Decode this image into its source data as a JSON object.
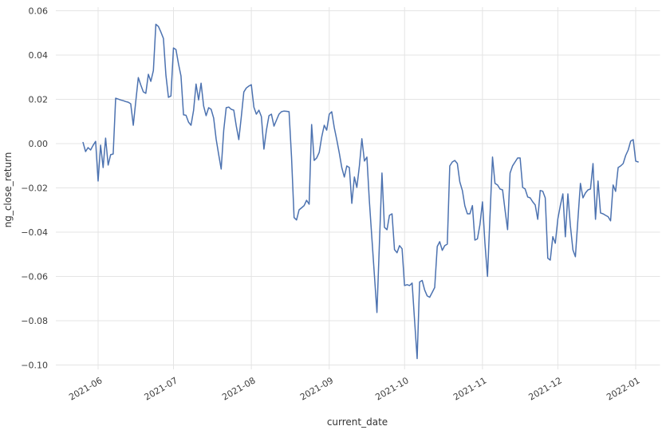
{
  "chart_data": {
    "type": "line",
    "title": "",
    "xlabel": "current_date",
    "ylabel": "ng_close_return",
    "legend_position": "none",
    "grid": true,
    "background_color": "#ffffff",
    "grid_color": "#e4e4e4",
    "line_color": "#4c72b0",
    "tick_color": "#3d3d3d",
    "x_axis": {
      "tick_rotation_deg": 30,
      "ticks": [
        {
          "label": "2021-06",
          "date": "2021-06-01"
        },
        {
          "label": "2021-07",
          "date": "2021-07-01"
        },
        {
          "label": "2021-08",
          "date": "2021-08-01"
        },
        {
          "label": "2021-09",
          "date": "2021-09-01"
        },
        {
          "label": "2021-10",
          "date": "2021-10-01"
        },
        {
          "label": "2021-11",
          "date": "2021-11-01"
        },
        {
          "label": "2021-12",
          "date": "2021-12-01"
        },
        {
          "label": "2022-01",
          "date": "2022-01-01"
        }
      ]
    },
    "y_axis": {
      "range": [
        -0.103,
        0.062
      ],
      "ticks": [
        {
          "label": "0.06",
          "value": 0.06
        },
        {
          "label": "0.04",
          "value": 0.04
        },
        {
          "label": "0.02",
          "value": 0.02
        },
        {
          "label": "0.00",
          "value": 0.0
        },
        {
          "label": "−0.02",
          "value": -0.02
        },
        {
          "label": "−0.04",
          "value": -0.04
        },
        {
          "label": "−0.06",
          "value": -0.06
        },
        {
          "label": "−0.08",
          "value": -0.08
        },
        {
          "label": "−0.10",
          "value": -0.1
        }
      ]
    },
    "series": [
      {
        "name": "ng_close_return",
        "x_start": "2021-05-26",
        "x_end": "2022-01-02",
        "x_interval": "daily",
        "values": [
          0.0005,
          -0.0036,
          -0.0018,
          -0.0029,
          -0.0008,
          0.001,
          -0.0169,
          -0.0007,
          -0.0108,
          0.0025,
          -0.0097,
          -0.005,
          -0.0047,
          0.0205,
          0.0201,
          0.0197,
          0.0194,
          0.019,
          0.0187,
          0.018,
          0.0083,
          0.019,
          0.0298,
          0.0265,
          0.0234,
          0.0227,
          0.0313,
          0.0281,
          0.033,
          0.0539,
          0.0529,
          0.0504,
          0.0475,
          0.031,
          0.0209,
          0.0215,
          0.0432,
          0.0425,
          0.036,
          0.0306,
          0.013,
          0.0128,
          0.0097,
          0.0083,
          0.015,
          0.0269,
          0.0197,
          0.0273,
          0.017,
          0.0126,
          0.0162,
          0.0155,
          0.0115,
          0.002,
          -0.005,
          -0.0115,
          0.006,
          0.0162,
          0.0165,
          0.0155,
          0.0151,
          0.008,
          0.0018,
          0.012,
          0.0233,
          0.0251,
          0.026,
          0.0266,
          0.0165,
          0.0133,
          0.0151,
          0.0122,
          -0.0025,
          0.006,
          0.0126,
          0.0133,
          0.0079,
          0.0106,
          0.0133,
          0.0144,
          0.0147,
          0.0146,
          0.0144,
          -0.006,
          -0.0334,
          -0.0345,
          -0.0299,
          -0.029,
          -0.028,
          -0.0256,
          -0.0274,
          0.0086,
          -0.0076,
          -0.0065,
          -0.004,
          0.0029,
          0.0083,
          0.0061,
          0.0133,
          0.0144,
          0.0072,
          0.0018,
          -0.0043,
          -0.0108,
          -0.0151,
          -0.0101,
          -0.0108,
          -0.027,
          -0.0151,
          -0.0198,
          -0.01,
          0.0022,
          -0.0079,
          -0.0061,
          -0.026,
          -0.043,
          -0.0594,
          -0.0763,
          -0.045,
          -0.0133,
          -0.0378,
          -0.0389,
          -0.0324,
          -0.0317,
          -0.0479,
          -0.0493,
          -0.0461,
          -0.0475,
          -0.0641,
          -0.0637,
          -0.0641,
          -0.063,
          -0.08,
          -0.0971,
          -0.0625,
          -0.0618,
          -0.0661,
          -0.0688,
          -0.0694,
          -0.0672,
          -0.065,
          -0.0465,
          -0.0443,
          -0.0482,
          -0.0461,
          -0.0454,
          -0.0101,
          -0.0083,
          -0.0076,
          -0.009,
          -0.0173,
          -0.0212,
          -0.0281,
          -0.0317,
          -0.0317,
          -0.028,
          -0.0436,
          -0.043,
          -0.0367,
          -0.0263,
          -0.045,
          -0.06,
          -0.033,
          -0.0061,
          -0.018,
          -0.0187,
          -0.0205,
          -0.0209,
          -0.03,
          -0.0389,
          -0.0133,
          -0.01,
          -0.0083,
          -0.0065,
          -0.0065,
          -0.0198,
          -0.0205,
          -0.0241,
          -0.0245,
          -0.0263,
          -0.0277,
          -0.0342,
          -0.0212,
          -0.0215,
          -0.0245,
          -0.0518,
          -0.0526,
          -0.042,
          -0.045,
          -0.034,
          -0.028,
          -0.0227,
          -0.0421,
          -0.0227,
          -0.037,
          -0.048,
          -0.0511,
          -0.034,
          -0.018,
          -0.0245,
          -0.0223,
          -0.0209,
          -0.0205,
          -0.009,
          -0.0342,
          -0.0169,
          -0.0313,
          -0.0317,
          -0.0324,
          -0.033,
          -0.0349,
          -0.0187,
          -0.0216,
          -0.0108,
          -0.0101,
          -0.009,
          -0.0054,
          -0.0029,
          0.0011,
          0.0018,
          -0.0079,
          -0.0083
        ]
      }
    ]
  }
}
